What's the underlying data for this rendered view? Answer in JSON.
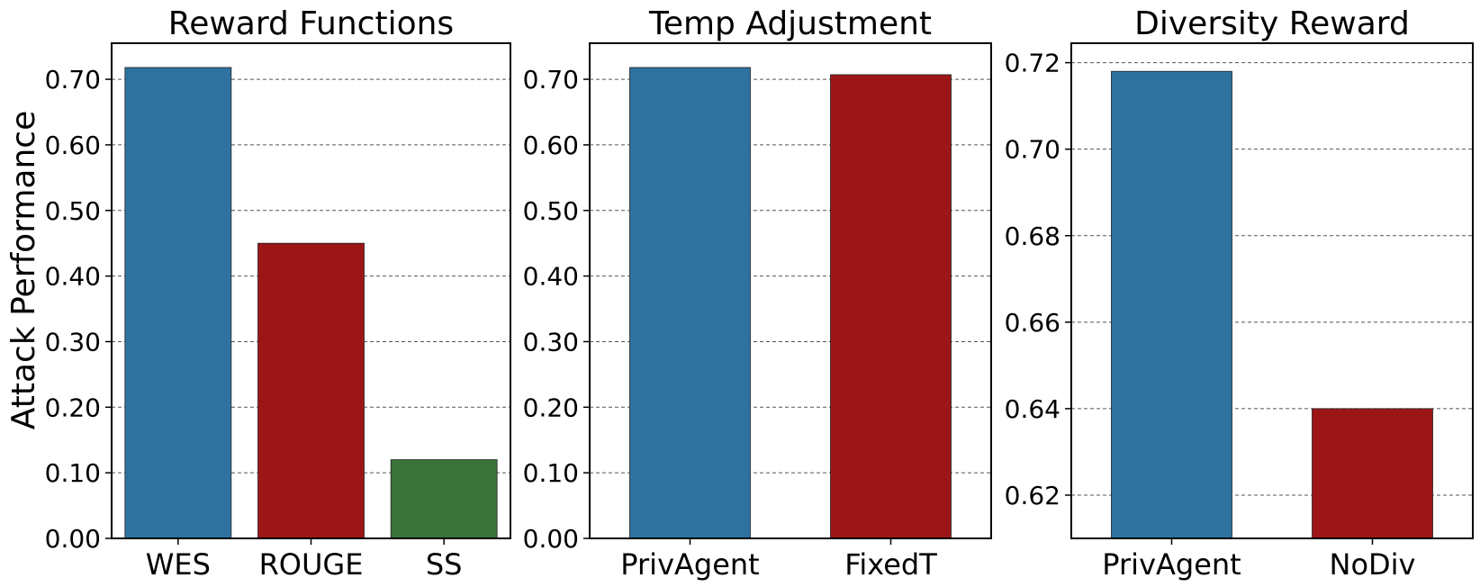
{
  "figure": {
    "ylabel": "Attack Performance"
  },
  "chart_data": [
    {
      "type": "bar",
      "title": "Reward Functions",
      "xlabel": "",
      "ylabel": "Attack Performance",
      "categories": [
        "WES",
        "ROUGE",
        "SS"
      ],
      "values": [
        0.718,
        0.45,
        0.12
      ],
      "colors": [
        "#2e72a0",
        "#9c1618",
        "#3a743b"
      ],
      "ylim": [
        0,
        0.755
      ],
      "yticks": [
        0,
        0.1,
        0.2,
        0.3,
        0.4,
        0.5,
        0.6,
        0.7
      ],
      "ytick_labels": [
        "0.00",
        "0.10",
        "0.20",
        "0.30",
        "0.40",
        "0.50",
        "0.60",
        "0.70"
      ],
      "grid": "y dashed"
    },
    {
      "type": "bar",
      "title": "Temp Adjustment",
      "xlabel": "",
      "ylabel": "",
      "categories": [
        "PrivAgent",
        "FixedT"
      ],
      "values": [
        0.718,
        0.707
      ],
      "colors": [
        "#2e72a0",
        "#9c1618"
      ],
      "ylim": [
        0,
        0.755
      ],
      "yticks": [
        0,
        0.1,
        0.2,
        0.3,
        0.4,
        0.5,
        0.6,
        0.7
      ],
      "ytick_labels": [
        "0.00",
        "0.10",
        "0.20",
        "0.30",
        "0.40",
        "0.50",
        "0.60",
        "0.70"
      ],
      "grid": "y dashed"
    },
    {
      "type": "bar",
      "title": "Diversity Reward",
      "xlabel": "",
      "ylabel": "",
      "categories": [
        "PrivAgent",
        "NoDiv"
      ],
      "values": [
        0.718,
        0.64
      ],
      "colors": [
        "#2e72a0",
        "#9c1618"
      ],
      "ylim": [
        0.61,
        0.7245
      ],
      "yticks": [
        0.62,
        0.64,
        0.66,
        0.68,
        0.7,
        0.72
      ],
      "ytick_labels": [
        "0.62",
        "0.64",
        "0.66",
        "0.68",
        "0.70",
        "0.72"
      ],
      "grid": "y dashed"
    }
  ]
}
